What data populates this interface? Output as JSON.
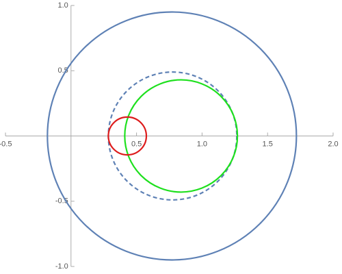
{
  "chart_data": {
    "type": "circles",
    "xlim": [
      -0.5,
      2.0
    ],
    "ylim": [
      -1.0,
      1.0
    ],
    "xticks": [
      -0.5,
      0.5,
      {
        "value": 1,
        "label": "1.0"
      },
      1.5,
      {
        "value": 2,
        "label": "2.0"
      }
    ],
    "yticks": [
      {
        "value": -1,
        "label": "-1.0"
      },
      -0.5,
      0.5,
      {
        "value": 1,
        "label": "1.0"
      }
    ],
    "series": [
      {
        "cx": 0.77,
        "cy": 0,
        "r": 0.95,
        "color": "#5e81b5",
        "dashed": false
      },
      {
        "cx": 0.775,
        "cy": 0,
        "r": 0.49,
        "color": "#5e81b5",
        "dashed": true
      },
      {
        "cx": 0.84,
        "cy": 0,
        "r": 0.43,
        "color": "#1ee01e",
        "dashed": false
      },
      {
        "cx": 0.43,
        "cy": 0,
        "r": 0.145,
        "color": "#dd1c1c",
        "dashed": false
      }
    ]
  }
}
